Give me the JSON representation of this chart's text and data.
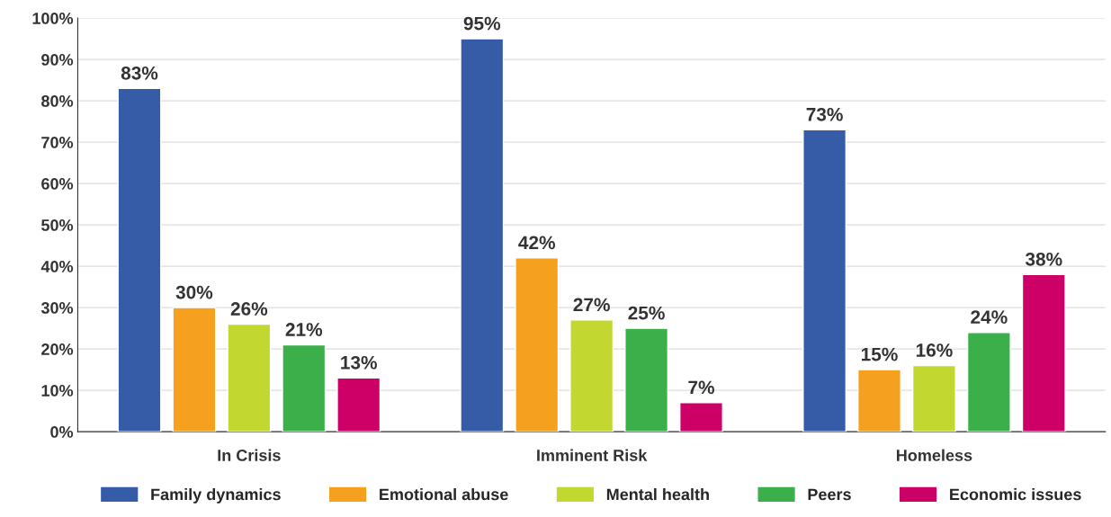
{
  "chart_data": {
    "type": "bar",
    "categories": [
      "In Crisis",
      "Imminent Risk",
      "Homeless"
    ],
    "series": [
      {
        "name": "Family dynamics",
        "color": "#365ca8",
        "values": [
          83,
          95,
          73
        ],
        "value_labels": [
          "83%",
          "95%",
          "73%"
        ]
      },
      {
        "name": "Emotional abuse",
        "color": "#f5a11f",
        "values": [
          30,
          42,
          15
        ],
        "value_labels": [
          "30%",
          "42%",
          "15%"
        ]
      },
      {
        "name": "Mental health",
        "color": "#c2d830",
        "values": [
          26,
          27,
          16
        ],
        "value_labels": [
          "26%",
          "27%",
          "16%"
        ]
      },
      {
        "name": "Peers",
        "color": "#3aaf4a",
        "values": [
          21,
          25,
          24
        ],
        "value_labels": [
          "21%",
          "25%",
          "24%"
        ]
      },
      {
        "name": "Economic issues",
        "color": "#cc0066",
        "values": [
          13,
          7,
          38
        ],
        "value_labels": [
          "13%",
          "7%",
          "38%"
        ]
      }
    ],
    "ylim": [
      0,
      100
    ],
    "yticks": [
      {
        "value": 0,
        "label": "0%"
      },
      {
        "value": 10,
        "label": "10%"
      },
      {
        "value": 20,
        "label": "20%"
      },
      {
        "value": 30,
        "label": "30%"
      },
      {
        "value": 40,
        "label": "40%"
      },
      {
        "value": 50,
        "label": "50%"
      },
      {
        "value": 60,
        "label": "60%"
      },
      {
        "value": 70,
        "label": "70%"
      },
      {
        "value": 80,
        "label": "80%"
      },
      {
        "value": 90,
        "label": "90%"
      },
      {
        "value": 100,
        "label": "100%"
      }
    ],
    "grid": "y",
    "legend": "bottom"
  }
}
